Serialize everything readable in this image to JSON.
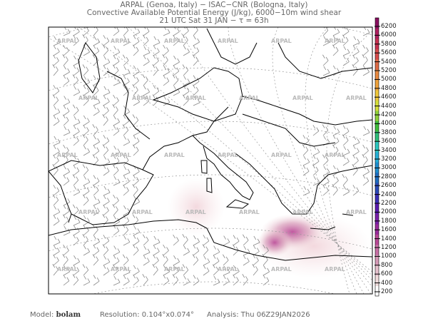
{
  "header": {
    "line1": "ARPAL (Genoa, Italy)  −  ISAC−CNR (Bologna, Italy)",
    "line2": "Convective Available Potential Energy (J/kg), 6000−10m wind shear",
    "line3": "21 UTC Sat 31 JAN  −  τ = 63h"
  },
  "watermark": "ARPAL",
  "colorbar": {
    "unit": "J/kg",
    "ticks": [
      "6200",
      "6000",
      "5800",
      "5600",
      "5400",
      "5200",
      "5000",
      "4800",
      "4600",
      "4400",
      "4200",
      "4000",
      "3800",
      "3600",
      "3400",
      "3200",
      "3000",
      "2800",
      "2600",
      "2400",
      "2200",
      "2000",
      "1800",
      "1600",
      "1400",
      "1200",
      "1000",
      "800",
      "600",
      "400",
      "200"
    ],
    "colors": [
      "#ffffff",
      "#f2dede",
      "#e8c2cf",
      "#d79ab8",
      "#c86fa6",
      "#b94896",
      "#9a2b9c",
      "#7a1fa8",
      "#5a1ab0",
      "#3a2db8",
      "#2a4ab8",
      "#1e6cc0",
      "#1e8ecf",
      "#25b0d8",
      "#2ac8c0",
      "#2dbf7a",
      "#3fbf3a",
      "#8fd23a",
      "#d6e03a",
      "#f0c83a",
      "#f0a23a",
      "#ea8a40",
      "#e06a44",
      "#d84a4a",
      "#c83050",
      "#b02060",
      "#8a1060"
    ]
  },
  "footer": {
    "model_label": "Model:",
    "model_value": "bolam",
    "resolution": "Resolution: 0.104°x0.074°",
    "analysis": "Analysis: Thu 06Z29JAN2026"
  }
}
